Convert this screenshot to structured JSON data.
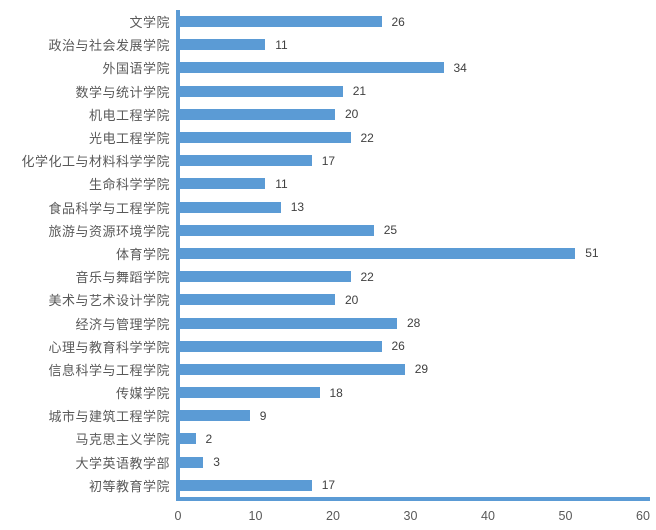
{
  "chart_data": {
    "type": "bar",
    "orientation": "horizontal",
    "title": "",
    "xlabel": "",
    "ylabel": "",
    "categories": [
      "文学院",
      "政治与社会发展学院",
      "外国语学院",
      "数学与统计学院",
      "机电工程学院",
      "光电工程学院",
      "化学化工与材料科学学院",
      "生命科学学院",
      "食品科学与工程学院",
      "旅游与资源环境学院",
      "体育学院",
      "音乐与舞蹈学院",
      "美术与艺术设计学院",
      "经济与管理学院",
      "心理与教育科学学院",
      "信息科学与工程学院",
      "传媒学院",
      "城市与建筑工程学院",
      "马克思主义学院",
      "大学英语教学部",
      "初等教育学院"
    ],
    "values": [
      26,
      11,
      34,
      21,
      20,
      22,
      17,
      11,
      13,
      25,
      51,
      22,
      20,
      28,
      26,
      29,
      18,
      9,
      2,
      3,
      17
    ],
    "xlim": [
      0,
      60
    ],
    "x_ticks": [
      0,
      10,
      20,
      30,
      40,
      50,
      60
    ],
    "grid": false,
    "legend": false,
    "data_labels": true,
    "bar_color": "#5B9BD5",
    "axis_line_color": "#5B9BD5",
    "category_label_color": "#595959",
    "value_label_color": "#404040",
    "tick_label_color": "#595959"
  }
}
